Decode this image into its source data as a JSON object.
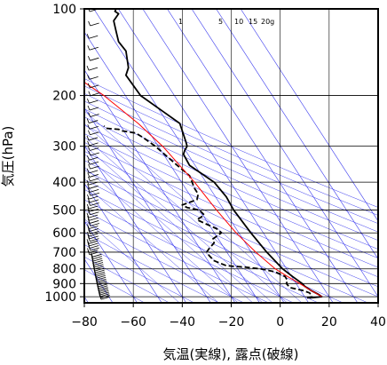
{
  "chart_data": {
    "type": "line",
    "xlabel": "気温(実線), 露点(破線)",
    "ylabel": "気圧(hPa)",
    "xlim": [
      -80,
      40
    ],
    "ylim": [
      1050,
      100
    ],
    "y_scale": "log",
    "grid": true,
    "x_ticks": [
      -80,
      -60,
      -40,
      -20,
      0,
      20,
      40
    ],
    "x_tick_labels": [
      "−80",
      "−60",
      "−40",
      "−20",
      "0",
      "20",
      "40"
    ],
    "y_ticks": [
      100,
      200,
      300,
      400,
      500,
      600,
      700,
      800,
      900,
      1000
    ],
    "y_tick_labels": [
      "100",
      "200",
      "300",
      "400",
      "500",
      "600",
      "700",
      "800",
      "900",
      "1000"
    ],
    "mixing_ratio_labels": [
      "1",
      "5",
      "10",
      "15",
      "20g"
    ],
    "colors": {
      "temperature": "#000000",
      "dewpoint": "#000000",
      "parcel": "#ff0000",
      "isotherms": "#3a3aee",
      "grid": "#000000",
      "wind_barbs": "#000000"
    },
    "series": [
      {
        "key": "temperature",
        "style": "solid",
        "points": [
          {
            "p": 1010,
            "t": 12
          },
          {
            "p": 1000,
            "t": 17
          },
          {
            "p": 980,
            "t": 15.5
          },
          {
            "p": 950,
            "t": 12.5
          },
          {
            "p": 920,
            "t": 10
          },
          {
            "p": 900,
            "t": 9
          },
          {
            "p": 850,
            "t": 5
          },
          {
            "p": 800,
            "t": 1
          },
          {
            "p": 700,
            "t": -5.5
          },
          {
            "p": 600,
            "t": -12
          },
          {
            "p": 500,
            "t": -19
          },
          {
            "p": 450,
            "t": -22
          },
          {
            "p": 400,
            "t": -27
          },
          {
            "p": 350,
            "t": -37
          },
          {
            "p": 320,
            "t": -39.5
          },
          {
            "p": 310,
            "t": -39
          },
          {
            "p": 300,
            "t": -38
          },
          {
            "p": 290,
            "t": -38.5
          },
          {
            "p": 250,
            "t": -41
          },
          {
            "p": 230,
            "t": -47
          },
          {
            "p": 200,
            "t": -57
          },
          {
            "p": 170,
            "t": -63
          },
          {
            "p": 160,
            "t": -62
          },
          {
            "p": 140,
            "t": -63
          },
          {
            "p": 130,
            "t": -66
          },
          {
            "p": 120,
            "t": -67
          },
          {
            "p": 110,
            "t": -68
          },
          {
            "p": 104,
            "t": -66
          },
          {
            "p": 102,
            "t": -67.5
          },
          {
            "p": 100,
            "t": -67
          }
        ]
      },
      {
        "key": "dewpoint",
        "style": "dashed",
        "points": [
          {
            "p": 1010,
            "t": 11
          },
          {
            "p": 1000,
            "t": 13
          },
          {
            "p": 970,
            "t": 12
          },
          {
            "p": 950,
            "t": 9
          },
          {
            "p": 930,
            "t": 4
          },
          {
            "p": 900,
            "t": 2.5
          },
          {
            "p": 880,
            "t": 3
          },
          {
            "p": 850,
            "t": 2
          },
          {
            "p": 820,
            "t": -2
          },
          {
            "p": 800,
            "t": -8
          },
          {
            "p": 790,
            "t": -14
          },
          {
            "p": 780,
            "t": -22
          },
          {
            "p": 750,
            "t": -27
          },
          {
            "p": 720,
            "t": -29
          },
          {
            "p": 700,
            "t": -30
          },
          {
            "p": 680,
            "t": -29
          },
          {
            "p": 650,
            "t": -27
          },
          {
            "p": 630,
            "t": -27.5
          },
          {
            "p": 600,
            "t": -24
          },
          {
            "p": 580,
            "t": -26
          },
          {
            "p": 560,
            "t": -30
          },
          {
            "p": 540,
            "t": -34
          },
          {
            "p": 520,
            "t": -31
          },
          {
            "p": 500,
            "t": -33
          },
          {
            "p": 490,
            "t": -38
          },
          {
            "p": 480,
            "t": -40
          },
          {
            "p": 460,
            "t": -34
          },
          {
            "p": 440,
            "t": -33.5
          },
          {
            "p": 420,
            "t": -35
          },
          {
            "p": 400,
            "t": -36
          },
          {
            "p": 380,
            "t": -37
          },
          {
            "p": 350,
            "t": -42
          },
          {
            "p": 300,
            "t": -51
          },
          {
            "p": 280,
            "t": -56
          },
          {
            "p": 270,
            "t": -59
          },
          {
            "p": 265,
            "t": -65
          },
          {
            "p": 262,
            "t": -66
          },
          {
            "p": 260,
            "t": -71
          },
          {
            "p": 255,
            "t": -72
          }
        ]
      },
      {
        "key": "parcel",
        "style": "solid",
        "points": [
          {
            "p": 1000,
            "t": 17
          },
          {
            "p": 950,
            "t": 12.5
          },
          {
            "p": 900,
            "t": 8
          },
          {
            "p": 850,
            "t": 3
          },
          {
            "p": 800,
            "t": -2
          },
          {
            "p": 700,
            "t": -10
          },
          {
            "p": 600,
            "t": -18
          },
          {
            "p": 500,
            "t": -26
          },
          {
            "p": 400,
            "t": -35
          },
          {
            "p": 300,
            "t": -48
          },
          {
            "p": 250,
            "t": -58
          },
          {
            "p": 200,
            "t": -72
          },
          {
            "p": 180,
            "t": -80
          }
        ]
      }
    ]
  }
}
